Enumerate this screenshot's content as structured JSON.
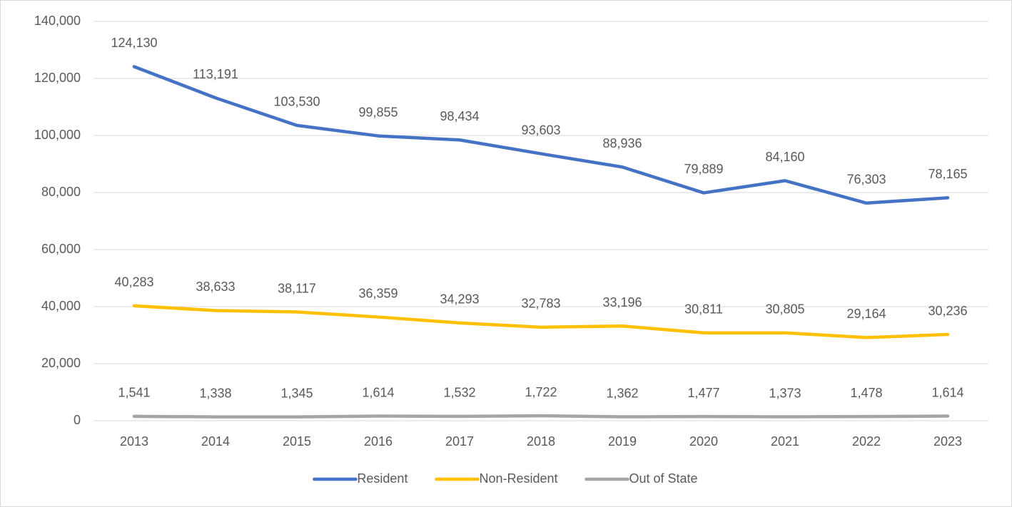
{
  "chart_data": {
    "type": "line",
    "categories": [
      "2013",
      "2014",
      "2015",
      "2016",
      "2017",
      "2018",
      "2019",
      "2020",
      "2021",
      "2022",
      "2023"
    ],
    "series": [
      {
        "name": "Resident",
        "color": "#4472c4",
        "values": [
          124130,
          113191,
          103530,
          99855,
          98434,
          93603,
          88936,
          79889,
          84160,
          76303,
          78165
        ],
        "value_labels": [
          "124,130",
          "113,191",
          "103,530",
          "99,855",
          "98,434",
          "93,603",
          "88,936",
          "79,889",
          "84,160",
          "76,303",
          "78,165"
        ]
      },
      {
        "name": "Non-Resident",
        "color": "#ffc000",
        "values": [
          40283,
          38633,
          38117,
          36359,
          34293,
          32783,
          33196,
          30811,
          30805,
          29164,
          30236
        ],
        "value_labels": [
          "40,283",
          "38,633",
          "38,117",
          "36,359",
          "34,293",
          "32,783",
          "33,196",
          "30,811",
          "30,805",
          "29,164",
          "30,236"
        ]
      },
      {
        "name": "Out of State",
        "color": "#a5a5a5",
        "values": [
          1541,
          1338,
          1345,
          1614,
          1532,
          1722,
          1362,
          1477,
          1373,
          1478,
          1614
        ],
        "value_labels": [
          "1,541",
          "1,338",
          "1,345",
          "1,614",
          "1,532",
          "1,722",
          "1,362",
          "1,477",
          "1,373",
          "1,478",
          "1,614"
        ]
      }
    ],
    "ylim": [
      0,
      140000
    ],
    "yticks": [
      0,
      {
        "value": 20000,
        "label": "20,000"
      },
      {
        "value": 40000,
        "label": "40,000"
      },
      {
        "value": 60000,
        "label": "60,000"
      },
      {
        "value": 80000,
        "label": "80,000"
      },
      {
        "value": 100000,
        "label": "100,000"
      },
      {
        "value": 120000,
        "label": "120,000"
      },
      {
        "value": 140000,
        "label": "140,000"
      }
    ],
    "grid": true,
    "legend": "bottom"
  }
}
